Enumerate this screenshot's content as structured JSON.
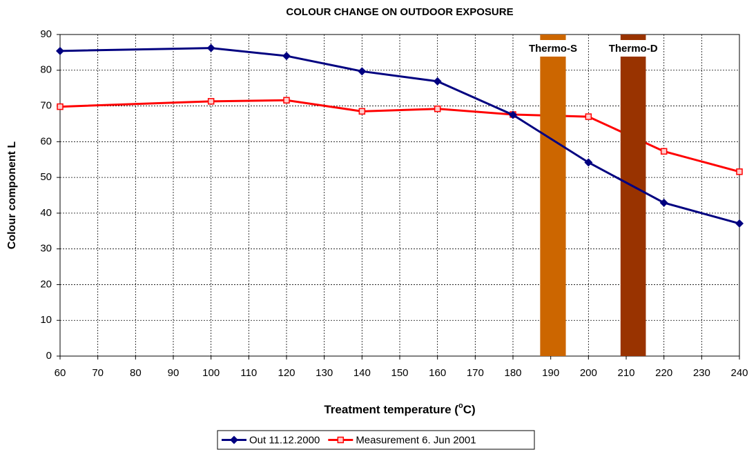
{
  "chart_data": {
    "type": "line",
    "title": "COLOUR CHANGE ON OUTDOOR EXPOSURE",
    "ylabel": "Colour component L",
    "xlabel": [
      "Treatment temperature (",
      "o",
      "C)"
    ],
    "x": [
      60,
      100,
      120,
      140,
      160,
      180,
      200,
      220,
      240
    ],
    "series": [
      {
        "name": "Out 11.12.2000",
        "color": "#000080",
        "marker": "diamond",
        "values": [
          85.4,
          86.2,
          84,
          79.7,
          76.9,
          67.5,
          54.2,
          42.9,
          37.1
        ]
      },
      {
        "name": "Measurement 6. Jun 2001",
        "color": "#ff0000",
        "marker": "square",
        "values": [
          69.8,
          71.3,
          71.6,
          68.5,
          69.2,
          67.6,
          67,
          57.3,
          51.6
        ]
      }
    ],
    "bands": [
      {
        "label": "Thermo-S",
        "color": "#cc6600",
        "x": [
          187.2,
          194
        ],
        "top": 90
      },
      {
        "label": "Thermo-D",
        "color": "#993300",
        "x": [
          208.5,
          215.2
        ],
        "top": 90
      }
    ],
    "xlim": [
      60,
      240
    ],
    "ylim": [
      0,
      90
    ],
    "xticks": [
      60,
      70,
      80,
      90,
      100,
      110,
      120,
      130,
      140,
      150,
      160,
      170,
      180,
      190,
      200,
      210,
      220,
      230,
      240
    ],
    "yticks": [
      0,
      10,
      20,
      30,
      40,
      50,
      60,
      70,
      80,
      90
    ],
    "grid": true,
    "legend": "bottom"
  }
}
